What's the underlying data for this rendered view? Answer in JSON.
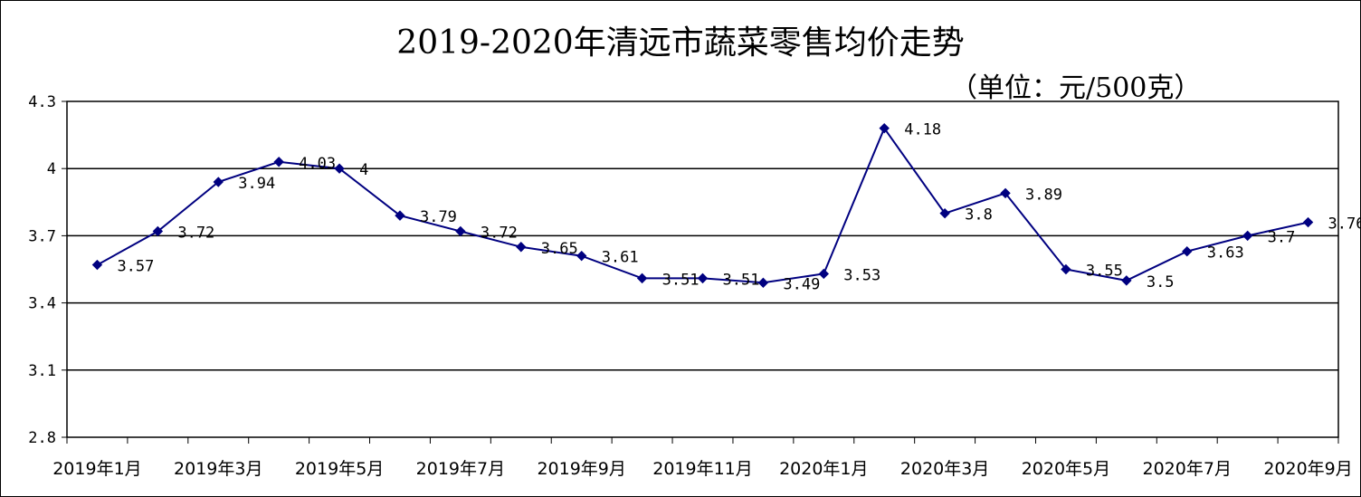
{
  "chart_data": {
    "type": "line",
    "title": "2019-2020年清远市蔬菜零售均价走势",
    "unit": "（单位：元/500克）",
    "ylim": [
      2.8,
      4.3
    ],
    "yticks": [
      2.8,
      3.1,
      3.4,
      3.7,
      4,
      4.3
    ],
    "ytick_labels": [
      "2.8",
      "3.1",
      "3.4",
      "3.7",
      "4",
      "4.3"
    ],
    "xtick_labels": [
      "2019年1月",
      "2019年3月",
      "2019年5月",
      "2019年7月",
      "2019年9月",
      "2019年11月",
      "2020年1月",
      "2020年3月",
      "2020年5月",
      "2020年7月",
      "2020年9月"
    ],
    "grid": "horizontal",
    "line_color": "#000080",
    "series": [
      {
        "values": [
          3.57,
          3.72,
          3.94,
          4.03,
          4,
          3.79,
          3.72,
          3.65,
          3.61,
          3.51,
          3.51,
          3.49,
          3.53,
          4.18,
          3.8,
          3.89,
          3.55,
          3.5,
          3.63,
          3.7,
          3.76
        ],
        "labels": [
          "3.57",
          "3.72",
          "3.94",
          "4.03",
          "4",
          "3.79",
          "3.72",
          "3.65",
          "3.61",
          "3.51",
          "3.51",
          "3.49",
          "3.53",
          "4.18",
          "3.8",
          "3.89",
          "3.55",
          "3.5",
          "3.63",
          "3.7",
          "3.76"
        ]
      }
    ]
  }
}
